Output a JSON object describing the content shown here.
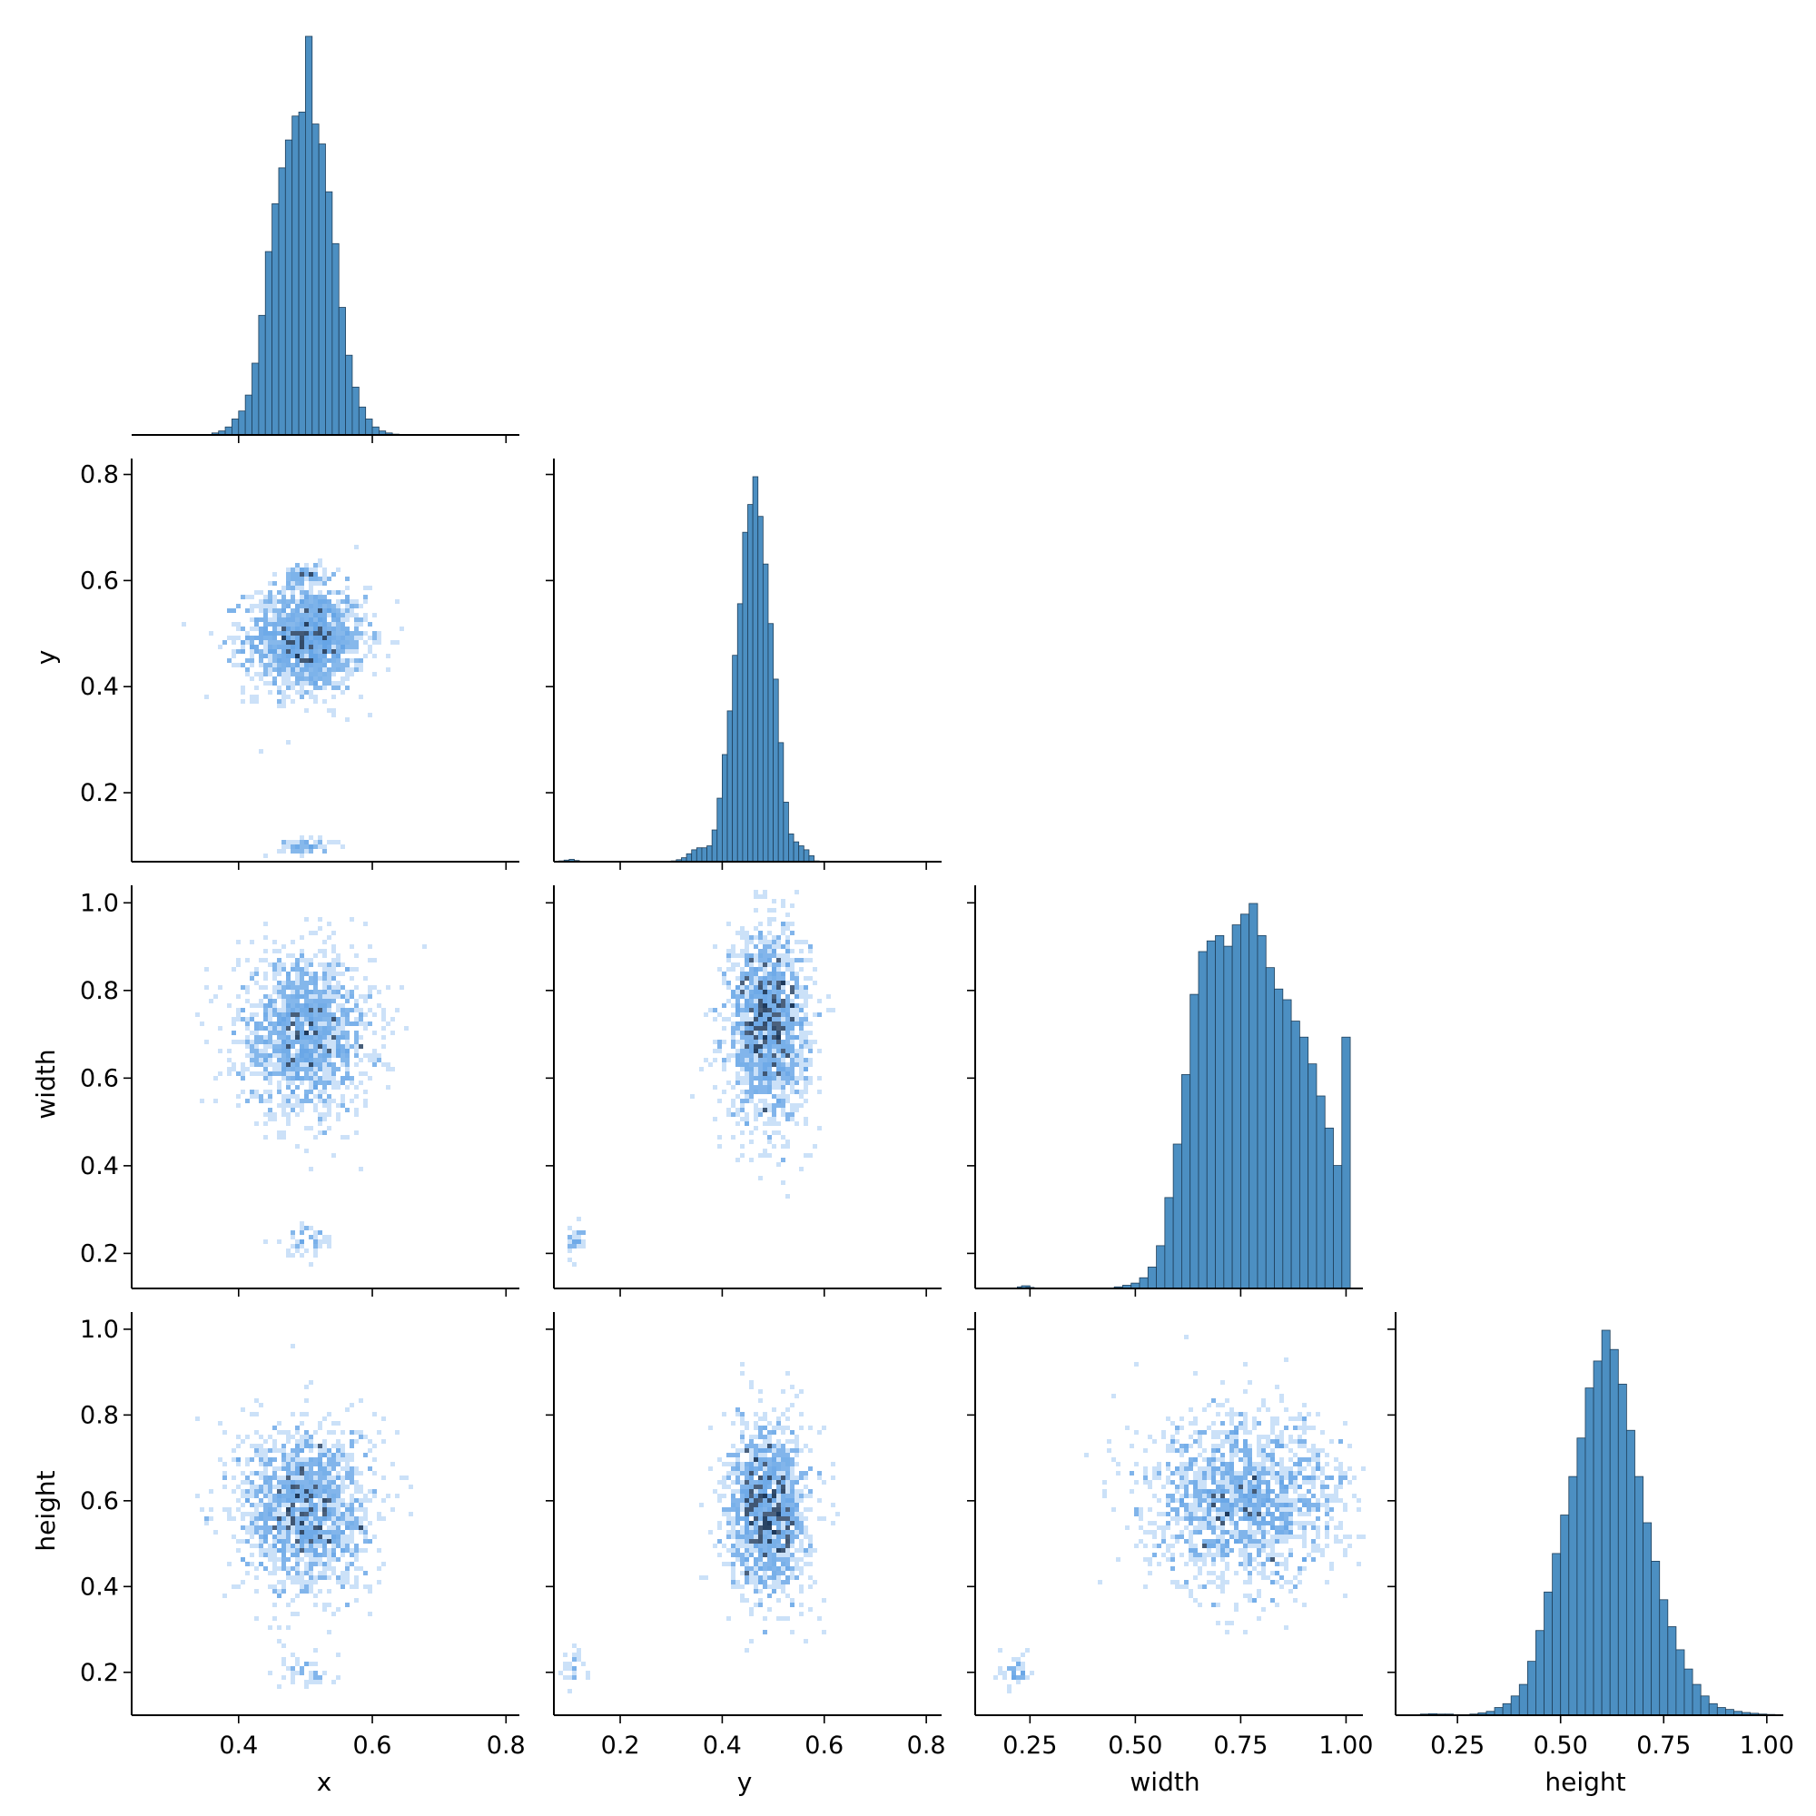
{
  "chart_data": {
    "type": "pairplot",
    "variables": [
      "x",
      "y",
      "width",
      "height"
    ],
    "layout": "corner",
    "diag_kind": "histogram",
    "offdiag_kind": "2d-histogram",
    "colors": {
      "hist_fill": "#4c8fc2",
      "hist_edge": "#1f3f5a",
      "heat_light": "#a9cdf3",
      "heat_mid": "#3f8ee0",
      "heat_dark": "#1e3a5c"
    },
    "axis_labels": {
      "x": "x",
      "y": "y",
      "width": "width",
      "height": "height"
    },
    "ranges": {
      "x": [
        0.24,
        0.82
      ],
      "y": [
        0.07,
        0.83
      ],
      "width": [
        0.12,
        1.04
      ],
      "height": [
        0.1,
        1.04
      ]
    },
    "ticks": {
      "x": [
        {
          "v": 0.4,
          "label": "0.4"
        },
        {
          "v": 0.6,
          "label": "0.6"
        },
        {
          "v": 0.8,
          "label": "0.8"
        }
      ],
      "y_bottom": [
        {
          "v": 0.2,
          "label": "0.2"
        },
        {
          "v": 0.4,
          "label": "0.4"
        },
        {
          "v": 0.6,
          "label": "0.6"
        },
        {
          "v": 0.8,
          "label": "0.8"
        }
      ],
      "y_left": [
        {
          "v": 0.2,
          "label": "0.2"
        },
        {
          "v": 0.4,
          "label": "0.4"
        },
        {
          "v": 0.6,
          "label": "0.6"
        },
        {
          "v": 0.8,
          "label": "0.8"
        }
      ],
      "width_bottom": [
        {
          "v": 0.25,
          "label": "0.25"
        },
        {
          "v": 0.5,
          "label": "0.50"
        },
        {
          "v": 0.75,
          "label": "0.75"
        },
        {
          "v": 1.0,
          "label": "1.00"
        }
      ],
      "width_left": [
        {
          "v": 0.2,
          "label": "0.2"
        },
        {
          "v": 0.4,
          "label": "0.4"
        },
        {
          "v": 0.6,
          "label": "0.6"
        },
        {
          "v": 0.8,
          "label": "0.8"
        },
        {
          "v": 1.0,
          "label": "1.0"
        }
      ],
      "height_bottom": [
        {
          "v": 0.25,
          "label": "0.25"
        },
        {
          "v": 0.5,
          "label": "0.50"
        },
        {
          "v": 0.75,
          "label": "0.75"
        },
        {
          "v": 1.0,
          "label": "1.00"
        }
      ],
      "height_left": [
        {
          "v": 0.2,
          "label": "0.2"
        },
        {
          "v": 0.4,
          "label": "0.4"
        },
        {
          "v": 0.6,
          "label": "0.6"
        },
        {
          "v": 0.8,
          "label": "0.8"
        },
        {
          "v": 1.0,
          "label": "1.0"
        }
      ]
    },
    "histograms": {
      "x": {
        "bins": [
          0.36,
          0.37,
          0.38,
          0.39,
          0.4,
          0.41,
          0.42,
          0.43,
          0.44,
          0.45,
          0.46,
          0.47,
          0.48,
          0.49,
          0.5,
          0.51,
          0.52,
          0.53,
          0.54,
          0.55,
          0.56,
          0.57,
          0.58,
          0.59,
          0.6,
          0.61,
          0.62,
          0.63
        ],
        "counts": [
          0.5,
          1,
          2,
          4,
          6,
          10,
          18,
          30,
          46,
          58,
          67,
          74,
          80,
          81,
          100,
          78,
          73,
          61,
          48,
          32,
          20,
          12,
          7,
          4,
          2,
          1,
          0.5,
          0.2
        ]
      },
      "y": {
        "bins": [
          0.08,
          0.09,
          0.1,
          0.11,
          0.3,
          0.31,
          0.32,
          0.33,
          0.34,
          0.35,
          0.36,
          0.37,
          0.38,
          0.39,
          0.4,
          0.41,
          0.42,
          0.43,
          0.44,
          0.45,
          0.46,
          0.47,
          0.48,
          0.49,
          0.5,
          0.51,
          0.52,
          0.53,
          0.54,
          0.55,
          0.56,
          0.57,
          0.58,
          0.59,
          0.6,
          0.61,
          0.62,
          0.63
        ],
        "counts": [
          0.2,
          0.4,
          0.6,
          0.3,
          0.2,
          0.5,
          1,
          2,
          3,
          3.5,
          3.5,
          4,
          8,
          16,
          27,
          38,
          52,
          65,
          83,
          90,
          97,
          87,
          75,
          60,
          46,
          30,
          15,
          7,
          5,
          4,
          3,
          1.5,
          0.2,
          0.1,
          0.1,
          0.1,
          0.1,
          0.1
        ]
      },
      "width": {
        "bins": [
          0.22,
          0.23,
          0.24,
          0.45,
          0.47,
          0.49,
          0.51,
          0.53,
          0.55,
          0.57,
          0.59,
          0.61,
          0.63,
          0.65,
          0.67,
          0.69,
          0.71,
          0.73,
          0.75,
          0.77,
          0.79,
          0.81,
          0.83,
          0.85,
          0.87,
          0.89,
          0.91,
          0.93,
          0.95,
          0.97,
          0.99
        ],
        "counts": [
          0.3,
          0.5,
          0.2,
          0.3,
          0.6,
          1,
          2,
          4,
          8,
          17,
          27,
          40,
          55,
          63,
          65,
          66,
          64,
          68,
          70,
          72,
          66,
          60,
          56,
          54,
          50,
          47,
          42,
          36,
          30,
          23,
          47
        ]
      },
      "height": {
        "bins": [
          0.16,
          0.18,
          0.2,
          0.22,
          0.28,
          0.3,
          0.32,
          0.34,
          0.36,
          0.38,
          0.4,
          0.42,
          0.44,
          0.46,
          0.48,
          0.5,
          0.52,
          0.54,
          0.56,
          0.58,
          0.6,
          0.62,
          0.64,
          0.66,
          0.68,
          0.7,
          0.72,
          0.74,
          0.76,
          0.78,
          0.8,
          0.82,
          0.84,
          0.86,
          0.88,
          0.9,
          0.92,
          0.94,
          0.96,
          0.98,
          1.0
        ],
        "counts": [
          0.3,
          0.4,
          0.3,
          0.3,
          0.3,
          0.6,
          1,
          2,
          3,
          5,
          8,
          14,
          22,
          32,
          42,
          52,
          62,
          72,
          85,
          92,
          100,
          95,
          86,
          74,
          62,
          50,
          40,
          30,
          23,
          17,
          12,
          8,
          5,
          3,
          2,
          1.5,
          1,
          0.7,
          0.5,
          0.3,
          0.2
        ]
      }
    },
    "scatter_clusters": {
      "y_vs_x": [
        {
          "cx": 0.5,
          "cy": 0.49,
          "sx": 0.045,
          "sy": 0.05,
          "n": 1500
        },
        {
          "cx": 0.5,
          "cy": 0.1,
          "sx": 0.02,
          "sy": 0.008,
          "n": 60
        },
        {
          "cx": 0.5,
          "cy": 0.61,
          "sx": 0.015,
          "sy": 0.01,
          "n": 80
        }
      ],
      "width_vs_x": [
        {
          "cx": 0.5,
          "cy": 0.7,
          "sx": 0.05,
          "sy": 0.09,
          "n": 1500
        },
        {
          "cx": 0.5,
          "cy": 0.23,
          "sx": 0.025,
          "sy": 0.02,
          "n": 50
        }
      ],
      "width_vs_y": [
        {
          "cx": 0.49,
          "cy": 0.72,
          "sx": 0.04,
          "sy": 0.11,
          "n": 1500
        },
        {
          "cx": 0.11,
          "cy": 0.23,
          "sx": 0.008,
          "sy": 0.02,
          "n": 30
        }
      ],
      "height_vs_x": [
        {
          "cx": 0.5,
          "cy": 0.58,
          "sx": 0.05,
          "sy": 0.1,
          "n": 1500
        },
        {
          "cx": 0.5,
          "cy": 0.2,
          "sx": 0.02,
          "sy": 0.02,
          "n": 40
        }
      ],
      "height_vs_y": [
        {
          "cx": 0.49,
          "cy": 0.58,
          "sx": 0.04,
          "sy": 0.1,
          "n": 1400
        },
        {
          "cx": 0.11,
          "cy": 0.2,
          "sx": 0.01,
          "sy": 0.03,
          "n": 25
        }
      ],
      "height_vs_width": [
        {
          "cx": 0.76,
          "cy": 0.6,
          "sx": 0.12,
          "sy": 0.1,
          "n": 1600
        },
        {
          "cx": 0.22,
          "cy": 0.2,
          "sx": 0.015,
          "sy": 0.02,
          "n": 40
        }
      ]
    }
  }
}
